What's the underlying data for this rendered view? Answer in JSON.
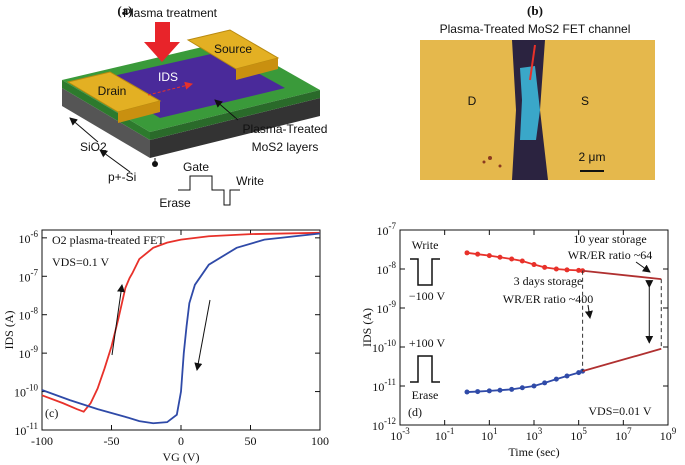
{
  "panel_a": {
    "label": "(a)",
    "plasma": "Plasma treatment",
    "source": "Source",
    "drain": "Drain",
    "ids": "IDS",
    "sio2": "SiO2",
    "si": "p+-Si",
    "treated_1": "Plasma-Treated",
    "treated_2": "MoS2 layers",
    "gate": "Gate",
    "write": "Write",
    "erase": "Erase"
  },
  "panel_b": {
    "label": "(b)",
    "caption": "Plasma-Treated MoS2 FET channel",
    "drain": "D",
    "source": "S",
    "scale": "2 μm"
  },
  "chart_data": [
    {
      "type": "line",
      "panel_label": "(c)",
      "xlabel": "VG (V)",
      "ylabel": "IDS (A)",
      "yscale": "log",
      "annotations": [
        "O2 plasma-treated FET",
        "VDS=0.1 V"
      ],
      "xlim": [
        -100,
        100
      ],
      "xticks": [
        -100,
        -50,
        0,
        50,
        100
      ],
      "ylim": [
        1e-11,
        1.6e-06
      ],
      "yticks": [
        {
          "value": 1e-11,
          "label": "10-11"
        },
        {
          "value": 1e-10,
          "label": "10-10"
        },
        {
          "value": 1e-09,
          "label": "10-9"
        },
        {
          "value": 1e-08,
          "label": "10-8"
        },
        {
          "value": 1e-07,
          "label": "10-7"
        },
        {
          "value": 1e-06,
          "label": "10-6"
        }
      ],
      "series": [
        {
          "color": "#e8312a",
          "markers": false,
          "x": [
            -100,
            -85,
            -75,
            -70,
            -65,
            -60,
            -55,
            -50,
            -45,
            -40,
            -37,
            -35,
            -30,
            -20,
            -10,
            0,
            20,
            50,
            100
          ],
          "values": [
            8e-11,
            5e-11,
            3.5e-11,
            3e-11,
            5e-11,
            1.2e-10,
            4e-10,
            1.5e-09,
            8e-09,
            5e-08,
            9e-08,
            1.2e-07,
            2.8e-07,
            5.5e-07,
            7.5e-07,
            9e-07,
            1.1e-06,
            1.25e-06,
            1.35e-06
          ]
        },
        {
          "color": "#2f4aa8",
          "markers": false,
          "x": [
            -100,
            -80,
            -60,
            -40,
            -30,
            -20,
            -10,
            -3,
            0,
            2,
            4,
            6,
            10,
            20,
            40,
            60,
            100
          ],
          "values": [
            1.1e-10,
            6e-11,
            3.5e-11,
            2.2e-11,
            1.7e-11,
            1.5e-11,
            1.6e-11,
            2.5e-11,
            1e-10,
            1e-09,
            5e-09,
            2e-08,
            6e-08,
            2e-07,
            5.5e-07,
            9e-07,
            1.3e-06
          ]
        }
      ]
    },
    {
      "type": "line",
      "panel_label": "(d)",
      "xlabel": "Time (sec)",
      "ylabel": "IDS (A)",
      "xscale": "log",
      "yscale": "log",
      "annotations": [
        "Write",
        "−100 V",
        "+100 V",
        "Erase",
        "3 days storage",
        "WR/ER ratio ~400",
        "10 year storage",
        "WR/ER ratio ~64",
        "VDS=0.01 V"
      ],
      "xlim": [
        0.001,
        1000000000.0
      ],
      "xticks": [
        {
          "value": 0.001,
          "label": "10-3"
        },
        {
          "value": 0.1,
          "label": "10-1"
        },
        {
          "value": 10,
          "label": "101"
        },
        {
          "value": 1000,
          "label": "103"
        },
        {
          "value": 100000,
          "label": "105"
        },
        {
          "value": 10000000,
          "label": "107"
        },
        {
          "value": 1000000000,
          "label": "109"
        }
      ],
      "ylim": [
        1e-12,
        1e-07
      ],
      "yticks": [
        {
          "value": 1e-12,
          "label": "10-12"
        },
        {
          "value": 1e-11,
          "label": "10-11"
        },
        {
          "value": 1e-10,
          "label": "10-10"
        },
        {
          "value": 1e-09,
          "label": "10-9"
        },
        {
          "value": 1e-08,
          "label": "10-8"
        },
        {
          "value": 1e-07,
          "label": "10-7"
        }
      ],
      "series": [
        {
          "color": "#e8312a",
          "markers": true,
          "x": [
            1,
            3,
            10,
            30,
            100,
            300,
            1000,
            3000,
            10000,
            30000,
            100000,
            150000
          ],
          "values": [
            2.6e-08,
            2.4e-08,
            2.2e-08,
            2e-08,
            1.8e-08,
            1.6e-08,
            1.3e-08,
            1.1e-08,
            1e-08,
            9.5e-09,
            9.2e-09,
            9e-09
          ]
        },
        {
          "color": "#b03030",
          "markers": false,
          "x": [
            150000,
            500000000
          ],
          "values": [
            9e-09,
            5.5e-09
          ]
        },
        {
          "color": "#2f4aa8",
          "markers": true,
          "x": [
            1,
            3,
            10,
            30,
            100,
            300,
            1000,
            3000,
            10000,
            30000,
            100000,
            150000
          ],
          "values": [
            7e-12,
            7.2e-12,
            7.5e-12,
            7.8e-12,
            8.2e-12,
            9e-12,
            1e-11,
            1.2e-11,
            1.5e-11,
            1.8e-11,
            2.2e-11,
            2.4e-11
          ]
        },
        {
          "color": "#b03030",
          "markers": false,
          "x": [
            150000,
            500000000
          ],
          "values": [
            2.4e-11,
            9e-11
          ]
        }
      ]
    }
  ]
}
